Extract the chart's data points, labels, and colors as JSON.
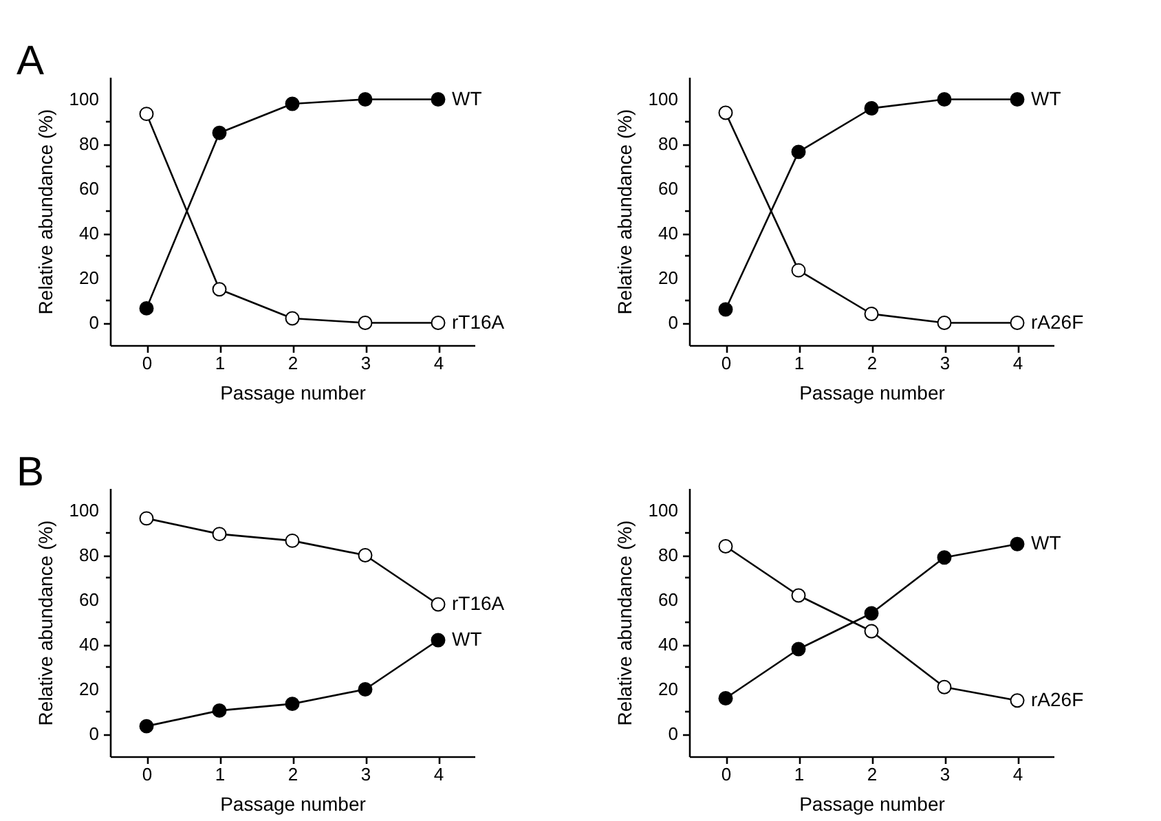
{
  "chart_data": [
    {
      "type": "line",
      "annotations": [
        "A"
      ],
      "xlabel": "Passage number",
      "ylabel": "Relative abundance (%)",
      "x": [
        0,
        1,
        2,
        3,
        4
      ],
      "xlim": [
        -0.5,
        4.5
      ],
      "xticks": [
        0,
        1,
        2,
        3,
        4
      ],
      "ylim": [
        -10,
        110
      ],
      "yticks": [
        0,
        {
          "value": 10,
          "label": null
        },
        20,
        {
          "value": 30,
          "label": null
        },
        40,
        {
          "value": 50,
          "label": null
        },
        60,
        {
          "value": 70,
          "label": null
        },
        80,
        {
          "value": 90,
          "label": null
        },
        100
      ],
      "marker": "circle",
      "series": [
        {
          "name": "WT",
          "color": "#000000",
          "values": [
            6.5,
            85,
            98,
            100,
            100
          ]
        },
        {
          "name": "rT16A",
          "color": "#ffffff",
          "values": [
            93.5,
            15,
            2,
            0,
            0
          ]
        }
      ]
    },
    {
      "type": "line",
      "xlabel": "Passage number",
      "ylabel": "Relative abundance (%)",
      "x": [
        0,
        1,
        2,
        3,
        4
      ],
      "xlim": [
        -0.5,
        4.5
      ],
      "xticks": [
        0,
        1,
        2,
        3,
        4
      ],
      "ylim": [
        -10,
        110
      ],
      "yticks": [
        0,
        {
          "value": 10,
          "label": null
        },
        20,
        {
          "value": 30,
          "label": null
        },
        40,
        {
          "value": 50,
          "label": null
        },
        60,
        {
          "value": 70,
          "label": null
        },
        80,
        {
          "value": 90,
          "label": null
        },
        100
      ],
      "marker": "circle",
      "series": [
        {
          "name": "WT",
          "color": "#000000",
          "values": [
            6,
            76.5,
            96,
            100,
            100
          ]
        },
        {
          "name": "rA26F",
          "color": "#ffffff",
          "values": [
            94,
            23.5,
            4,
            0,
            0
          ]
        }
      ]
    },
    {
      "type": "line",
      "annotations": [
        "B"
      ],
      "xlabel": "Passage number",
      "ylabel": "Relative abundance (%)",
      "x": [
        0,
        1,
        2,
        3,
        4
      ],
      "xlim": [
        -0.5,
        4.5
      ],
      "xticks": [
        0,
        1,
        2,
        3,
        4
      ],
      "ylim": [
        -10,
        110
      ],
      "yticks": [
        0,
        {
          "value": 10,
          "label": null
        },
        20,
        {
          "value": 30,
          "label": null
        },
        40,
        {
          "value": 50,
          "label": null
        },
        60,
        {
          "value": 70,
          "label": null
        },
        80,
        {
          "value": 90,
          "label": null
        },
        100
      ],
      "marker": "circle",
      "series": [
        {
          "name": "rT16A",
          "color": "#ffffff",
          "values": [
            96.5,
            89.5,
            86.5,
            80,
            58
          ]
        },
        {
          "name": "WT",
          "color": "#000000",
          "values": [
            3.5,
            10.5,
            13.5,
            20,
            42
          ]
        }
      ]
    },
    {
      "type": "line",
      "xlabel": "Passage number",
      "ylabel": "Relative abundance (%)",
      "x": [
        0,
        1,
        2,
        3,
        4
      ],
      "xlim": [
        -0.5,
        4.5
      ],
      "xticks": [
        0,
        1,
        2,
        3,
        4
      ],
      "ylim": [
        -10,
        110
      ],
      "yticks": [
        0,
        {
          "value": 10,
          "label": null
        },
        20,
        {
          "value": 30,
          "label": null
        },
        40,
        {
          "value": 50,
          "label": null
        },
        60,
        {
          "value": 70,
          "label": null
        },
        80,
        {
          "value": 90,
          "label": null
        },
        100
      ],
      "marker": "circle",
      "series": [
        {
          "name": "WT",
          "color": "#000000",
          "values": [
            16,
            38,
            54,
            79,
            85
          ]
        },
        {
          "name": "rA26F",
          "color": "#ffffff",
          "values": [
            84,
            62,
            46,
            21,
            15
          ]
        }
      ]
    }
  ]
}
